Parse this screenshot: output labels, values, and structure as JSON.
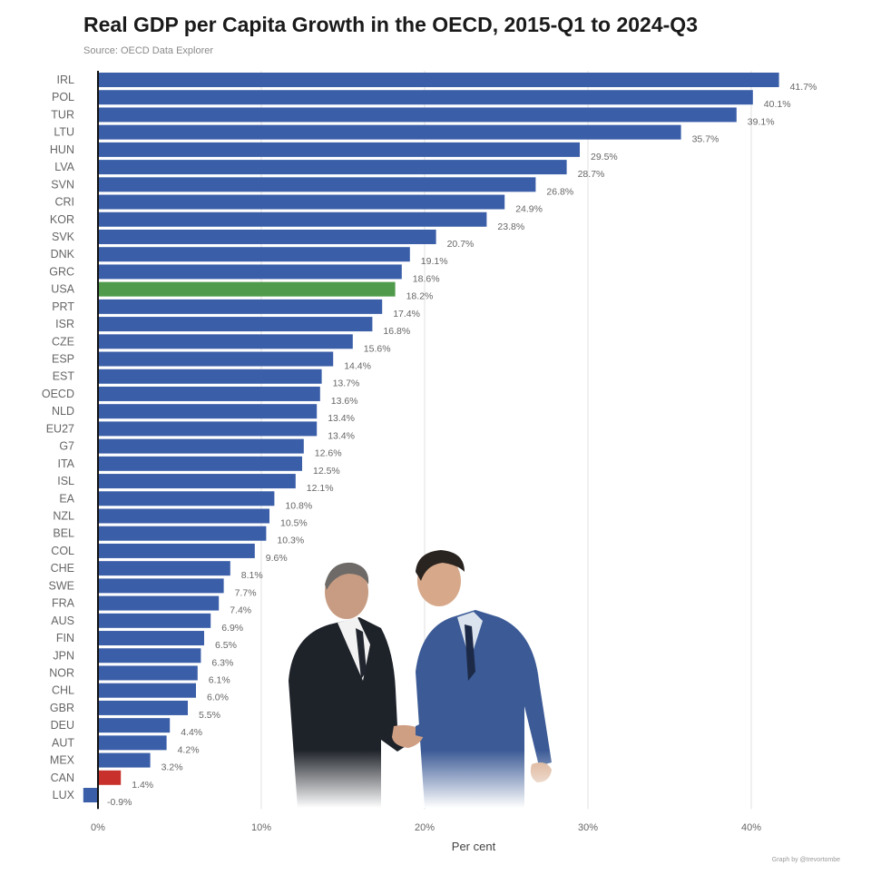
{
  "chart_data": {
    "type": "bar",
    "orientation": "horizontal",
    "title": "Real GDP per Capita Growth in the OECD, 2015-Q1 to 2024-Q3",
    "subtitle": "Source: OECD Data Explorer",
    "xlabel": "Per cent",
    "ylabel": "",
    "xlim": [
      -1,
      43
    ],
    "xticks": [
      0,
      10,
      20,
      30,
      40
    ],
    "xtick_labels": [
      "0%",
      "10%",
      "20%",
      "30%",
      "40%"
    ],
    "grid": "vertical",
    "categories": [
      "IRL",
      "POL",
      "TUR",
      "LTU",
      "HUN",
      "LVA",
      "SVN",
      "CRI",
      "KOR",
      "SVK",
      "DNK",
      "GRC",
      "USA",
      "PRT",
      "ISR",
      "CZE",
      "ESP",
      "EST",
      "OECD",
      "NLD",
      "EU27",
      "G7",
      "ITA",
      "ISL",
      "EA",
      "NZL",
      "BEL",
      "COL",
      "CHE",
      "SWE",
      "FRA",
      "AUS",
      "FIN",
      "JPN",
      "NOR",
      "CHL",
      "GBR",
      "DEU",
      "AUT",
      "MEX",
      "CAN",
      "LUX"
    ],
    "values": [
      41.7,
      40.1,
      39.1,
      35.7,
      29.5,
      28.7,
      26.8,
      24.9,
      23.8,
      20.7,
      19.1,
      18.6,
      18.2,
      17.4,
      16.8,
      15.6,
      14.4,
      13.7,
      13.6,
      13.4,
      13.4,
      12.6,
      12.5,
      12.1,
      10.8,
      10.5,
      10.3,
      9.6,
      8.1,
      7.7,
      7.4,
      6.9,
      6.5,
      6.3,
      6.1,
      6.0,
      5.5,
      4.4,
      4.2,
      3.2,
      1.4,
      -0.9
    ],
    "value_labels": [
      "41.7%",
      "40.1%",
      "39.1%",
      "35.7%",
      "29.5%",
      "28.7%",
      "26.8%",
      "24.9%",
      "23.8%",
      "20.7%",
      "19.1%",
      "18.6%",
      "18.2%",
      "17.4%",
      "16.8%",
      "15.6%",
      "14.4%",
      "13.7%",
      "13.6%",
      "13.4%",
      "13.4%",
      "12.6%",
      "12.5%",
      "12.1%",
      "10.8%",
      "10.5%",
      "10.3%",
      "9.6%",
      "8.1%",
      "7.7%",
      "7.4%",
      "6.9%",
      "6.5%",
      "6.3%",
      "6.1%",
      "6.0%",
      "5.5%",
      "4.4%",
      "4.2%",
      "3.2%",
      "1.4%",
      "-0.9%"
    ],
    "colors": {
      "default": "#3a5ea8",
      "highlight_usa": "#4f9a4b",
      "highlight_can": "#c8312b",
      "grid": "#e2e2e2",
      "axis": "#111111",
      "text": "#555555"
    },
    "highlights": {
      "USA": "highlight_usa",
      "CAN": "highlight_can"
    }
  },
  "footer": {
    "credit": "Graph by @trevortombe"
  },
  "image": {
    "description_icon": "handshake-photo-icon"
  }
}
